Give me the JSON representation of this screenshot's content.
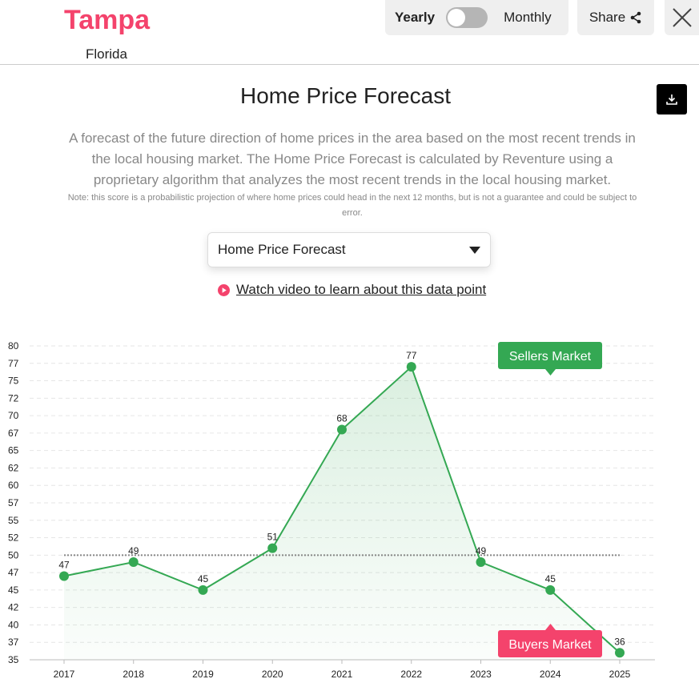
{
  "header": {
    "city": "Tampa",
    "state": "Florida",
    "toggle": {
      "left": "Yearly",
      "right": "Monthly",
      "monthly_on": false
    },
    "share_label": "Share"
  },
  "main": {
    "title": "Home Price Forecast",
    "description": "A forecast of the future direction of home prices in the area based on the most recent trends in the local housing market. The Home Price Forecast is calculated by Reventure using a proprietary algorithm that analyzes the most recent trends in the local housing market.",
    "note": "Note: this score is a probabilistic projection of where home prices could head in the next 12 months, but is not a guarantee and could be subject to error.",
    "select_value": "Home Price Forecast",
    "video_link": "Watch video to learn about this data point"
  },
  "colors": {
    "accent": "#f4436c",
    "line": "#34a853",
    "sellers": "#34a853",
    "buyers": "#f4436c"
  },
  "chart_data": {
    "type": "line",
    "x": [
      "2017",
      "2018",
      "2019",
      "2020",
      "2021",
      "2022",
      "2023",
      "2024",
      "2025"
    ],
    "values": [
      47,
      49,
      45,
      51,
      68,
      77,
      49,
      45,
      36
    ],
    "labels": [
      "47",
      "49",
      "45",
      "51",
      "68",
      "77",
      "49",
      "45",
      "36"
    ],
    "yticks": [
      "80",
      "77",
      "75",
      "72",
      "70",
      "67",
      "65",
      "62",
      "60",
      "57",
      "55",
      "52",
      "50",
      "47",
      "45",
      "42",
      "40",
      "37",
      "35"
    ],
    "ylim": [
      35,
      80
    ],
    "reference_line": 50,
    "grid": true,
    "annotations": {
      "upper": "Sellers Market",
      "lower": "Buyers Market"
    }
  }
}
